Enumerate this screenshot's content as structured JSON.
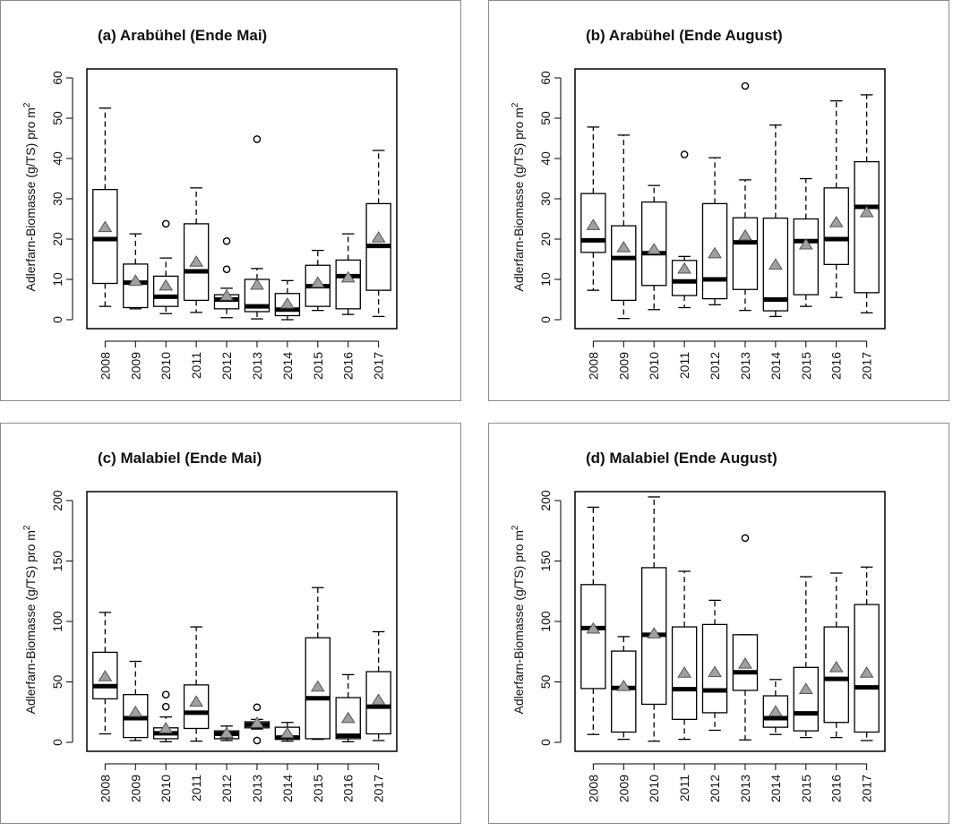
{
  "chart_data": [
    {
      "type": "boxplot",
      "title": "(a) Arabühel (Ende Mai)",
      "ylabel": "Adlerfarn-Biomasse (g/TS) pro m",
      "ylabel_sup": "2",
      "ylim": [
        0,
        60
      ],
      "yticks": [
        0,
        10,
        20,
        30,
        40,
        50,
        60
      ],
      "categories": [
        "2008",
        "2009",
        "2010",
        "2011",
        "2012",
        "2013",
        "2014",
        "2015",
        "2016",
        "2017"
      ],
      "boxes": [
        {
          "min": 3.3,
          "q1": 9,
          "median": 20,
          "q3": 32.3,
          "max": 52.5,
          "mean": 22.8,
          "outliers": []
        },
        {
          "min": 2.7,
          "q1": 3,
          "median": 9.2,
          "q3": 13.8,
          "max": 21.3,
          "mean": 9.5,
          "outliers": []
        },
        {
          "min": 1.5,
          "q1": 3.3,
          "median": 5.7,
          "q3": 10.8,
          "max": 15.3,
          "mean": 8.3,
          "outliers": [
            23.8
          ]
        },
        {
          "min": 1.8,
          "q1": 4.8,
          "median": 12,
          "q3": 23.8,
          "max": 32.7,
          "mean": 14.2,
          "outliers": []
        },
        {
          "min": 0.5,
          "q1": 2.7,
          "median": 5,
          "q3": 6.2,
          "max": 7.8,
          "mean": 5.8,
          "outliers": [
            12.5,
            19.5
          ]
        },
        {
          "min": 0.2,
          "q1": 2,
          "median": 3.3,
          "q3": 10,
          "max": 12.7,
          "mean": 8.5,
          "outliers": [
            44.8
          ]
        },
        {
          "min": 0,
          "q1": 1,
          "median": 2.5,
          "q3": 6.5,
          "max": 9.7,
          "mean": 3.8,
          "outliers": []
        },
        {
          "min": 2.3,
          "q1": 3.3,
          "median": 8.3,
          "q3": 13.5,
          "max": 17.2,
          "mean": 9.0,
          "outliers": []
        },
        {
          "min": 1.3,
          "q1": 2.7,
          "median": 10.8,
          "q3": 14.8,
          "max": 21.3,
          "mean": 10.3,
          "outliers": []
        },
        {
          "min": 0.8,
          "q1": 7.3,
          "median": 18.3,
          "q3": 28.8,
          "max": 42,
          "mean": 20.2,
          "outliers": []
        }
      ]
    },
    {
      "type": "boxplot",
      "title": "(b) Arabühel (Ende August)",
      "ylabel": "Adlerfarn-Biomasse (g/TS) pro m",
      "ylabel_sup": "2",
      "ylim": [
        0,
        60
      ],
      "yticks": [
        0,
        10,
        20,
        30,
        40,
        50,
        60
      ],
      "categories": [
        "2008",
        "2009",
        "2010",
        "2011",
        "2012",
        "2013",
        "2014",
        "2015",
        "2016",
        "2017"
      ],
      "boxes": [
        {
          "min": 7.3,
          "q1": 16.7,
          "median": 19.7,
          "q3": 31.3,
          "max": 47.8,
          "mean": 23.3,
          "outliers": []
        },
        {
          "min": 0.3,
          "q1": 4.8,
          "median": 15.3,
          "q3": 23.3,
          "max": 45.8,
          "mean": 17.8,
          "outliers": []
        },
        {
          "min": 2.5,
          "q1": 8.5,
          "median": 16.5,
          "q3": 29.2,
          "max": 33.3,
          "mean": 17.3,
          "outliers": []
        },
        {
          "min": 3,
          "q1": 6,
          "median": 9.5,
          "q3": 14.7,
          "max": 15.7,
          "mean": 12.5,
          "outliers": [
            41
          ]
        },
        {
          "min": 3.7,
          "q1": 5.2,
          "median": 10,
          "q3": 28.8,
          "max": 40.2,
          "mean": 16.3,
          "outliers": []
        },
        {
          "min": 2.3,
          "q1": 7.5,
          "median": 19.2,
          "q3": 25.3,
          "max": 34.7,
          "mean": 20.7,
          "outliers": [
            58
          ]
        },
        {
          "min": 0.8,
          "q1": 2.2,
          "median": 5,
          "q3": 25.2,
          "max": 48.3,
          "mean": 13.5,
          "outliers": []
        },
        {
          "min": 3.3,
          "q1": 6.2,
          "median": 19.5,
          "q3": 25,
          "max": 35,
          "mean": 18.5,
          "outliers": []
        },
        {
          "min": 5.5,
          "q1": 13.7,
          "median": 20,
          "q3": 32.7,
          "max": 54.3,
          "mean": 24,
          "outliers": []
        },
        {
          "min": 1.7,
          "q1": 6.7,
          "median": 28,
          "q3": 39.2,
          "max": 55.8,
          "mean": 26.5,
          "outliers": []
        }
      ]
    },
    {
      "type": "boxplot",
      "title": "(c) Malabiel (Ende Mai)",
      "ylabel": "Adlerfarn-Biomasse (g/TS) pro m",
      "ylabel_sup": "2",
      "ylim": [
        0,
        200
      ],
      "yticks": [
        0,
        50,
        100,
        150,
        200
      ],
      "categories": [
        "2008",
        "2009",
        "2010",
        "2011",
        "2012",
        "2013",
        "2014",
        "2015",
        "2016",
        "2017"
      ],
      "boxes": [
        {
          "min": 7,
          "q1": 36,
          "median": 46.5,
          "q3": 74.5,
          "max": 107.5,
          "mean": 54,
          "outliers": []
        },
        {
          "min": 1.5,
          "q1": 4,
          "median": 20,
          "q3": 39.5,
          "max": 67,
          "mean": 24.5,
          "outliers": []
        },
        {
          "min": 0.5,
          "q1": 3,
          "median": 7.5,
          "q3": 12,
          "max": 21,
          "mean": 11,
          "outliers": [
            29.5,
            39.5
          ]
        },
        {
          "min": 1,
          "q1": 11.5,
          "median": 24.5,
          "q3": 47.5,
          "max": 95.5,
          "mean": 33,
          "outliers": []
        },
        {
          "min": 1.5,
          "q1": 3,
          "median": 7,
          "q3": 9.5,
          "max": 13.5,
          "mean": 7,
          "outliers": []
        },
        {
          "min": 11,
          "q1": 12,
          "median": 14.5,
          "q3": 17,
          "max": 19,
          "mean": 15.5,
          "outliers": [
            1.5,
            29
          ]
        },
        {
          "min": 1,
          "q1": 2.5,
          "median": 4,
          "q3": 12.5,
          "max": 16.5,
          "mean": 7,
          "outliers": []
        },
        {
          "min": 2.5,
          "q1": 3,
          "median": 36.5,
          "q3": 86.5,
          "max": 128,
          "mean": 45.5,
          "outliers": []
        },
        {
          "min": 0.5,
          "q1": 3,
          "median": 5.5,
          "q3": 37,
          "max": 56,
          "mean": 19.5,
          "outliers": []
        },
        {
          "min": 1.5,
          "q1": 7,
          "median": 29.5,
          "q3": 58.5,
          "max": 91.5,
          "mean": 34.5,
          "outliers": []
        }
      ]
    },
    {
      "type": "boxplot",
      "title": "(d) Malabiel (Ende August)",
      "ylabel": "Adlerfarn-Biomasse (g/TS) pro m",
      "ylabel_sup": "2",
      "ylim": [
        0,
        200
      ],
      "yticks": [
        0,
        50,
        100,
        150,
        200
      ],
      "categories": [
        "2008",
        "2009",
        "2010",
        "2011",
        "2012",
        "2013",
        "2014",
        "2015",
        "2016",
        "2017"
      ],
      "boxes": [
        {
          "min": 6.5,
          "q1": 44.5,
          "median": 94.5,
          "q3": 130.5,
          "max": 194.5,
          "mean": 93.5,
          "outliers": []
        },
        {
          "min": 2.5,
          "q1": 8.5,
          "median": 45,
          "q3": 75.5,
          "max": 87.5,
          "mean": 46,
          "outliers": []
        },
        {
          "min": 1,
          "q1": 31.5,
          "median": 89,
          "q3": 144.5,
          "max": 203,
          "mean": 89.5,
          "outliers": []
        },
        {
          "min": 2.5,
          "q1": 19,
          "median": 44,
          "q3": 95.5,
          "max": 141.5,
          "mean": 57,
          "outliers": []
        },
        {
          "min": 10,
          "q1": 24.5,
          "median": 43,
          "q3": 97.5,
          "max": 117.5,
          "mean": 57.5,
          "outliers": []
        },
        {
          "min": 2,
          "q1": 43,
          "median": 58,
          "q3": 89,
          "max": 89,
          "mean": 64.5,
          "outliers": [
            169
          ]
        },
        {
          "min": 6.5,
          "q1": 12.5,
          "median": 20,
          "q3": 38.5,
          "max": 52,
          "mean": 25,
          "outliers": []
        },
        {
          "min": 4,
          "q1": 9.5,
          "median": 24,
          "q3": 62,
          "max": 137,
          "mean": 43.5,
          "outliers": []
        },
        {
          "min": 4,
          "q1": 16.5,
          "median": 52.5,
          "q3": 95.5,
          "max": 140,
          "mean": 61.5,
          "outliers": []
        },
        {
          "min": 1.5,
          "q1": 8.5,
          "median": 45.5,
          "q3": 114,
          "max": 145,
          "mean": 57,
          "outliers": []
        }
      ]
    }
  ],
  "colors": {
    "box_stroke": "#000000",
    "median": "#000000",
    "mean_fill": "#a0a0a0",
    "panel_border": "#8a8a8a"
  }
}
